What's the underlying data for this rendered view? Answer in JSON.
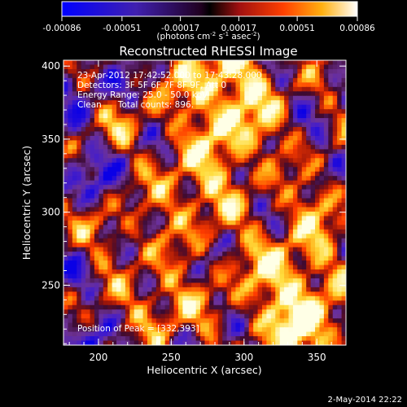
{
  "chart_data": {
    "type": "heatmap",
    "title": "Reconstructed RHESSI Image",
    "xlabel": "Heliocentric X (arcsec)",
    "ylabel": "Heliocentric Y (arcsec)",
    "xlim": [
      176,
      370
    ],
    "ylim": [
      209,
      404
    ],
    "xticks": [
      "200",
      "250",
      "300",
      "350"
    ],
    "xtick_values": [
      200,
      250,
      300,
      350
    ],
    "yticks": [
      "250",
      "300",
      "350",
      "400"
    ],
    "ytick_values": [
      250,
      300,
      350,
      400
    ],
    "colorbar": {
      "range": [
        -0.00086,
        0.00086
      ],
      "ticks": [
        "-0.00086",
        "-0.00051",
        "-0.00017",
        "0.00017",
        "0.00051",
        "0.00086"
      ],
      "tick_values": [
        -0.00086,
        -0.00051,
        -0.00017,
        0.00017,
        0.00051,
        0.00086
      ],
      "units_prefix": "(photons cm",
      "units_exp1": "-2",
      "units_mid1": " s",
      "units_exp2": "-1",
      "units_mid2": " asec",
      "units_exp3": "-2",
      "units_suffix": ")"
    },
    "annotations": {
      "time_range": "23-Apr-2012 17:42:52.000 to 17:43:28.000",
      "detectors": "Detectors: 3F 5F 6F 7F 8F 9F, Att 0",
      "energy": "Energy Range: 25.0 - 50.0 keV",
      "clean": "Clean      Total counts: 896.",
      "peak": "Position of Peak = [332,393]"
    },
    "peak_position": [
      332,
      393
    ],
    "colors": {
      "colormap": [
        "#0000ff",
        "#3020c0",
        "#502890",
        "#200010",
        "#a01010",
        "#ff3000",
        "#ff8000",
        "#ffd020",
        "#ffffff"
      ]
    }
  },
  "footer": {
    "date": "2-May-2014 22:22"
  }
}
